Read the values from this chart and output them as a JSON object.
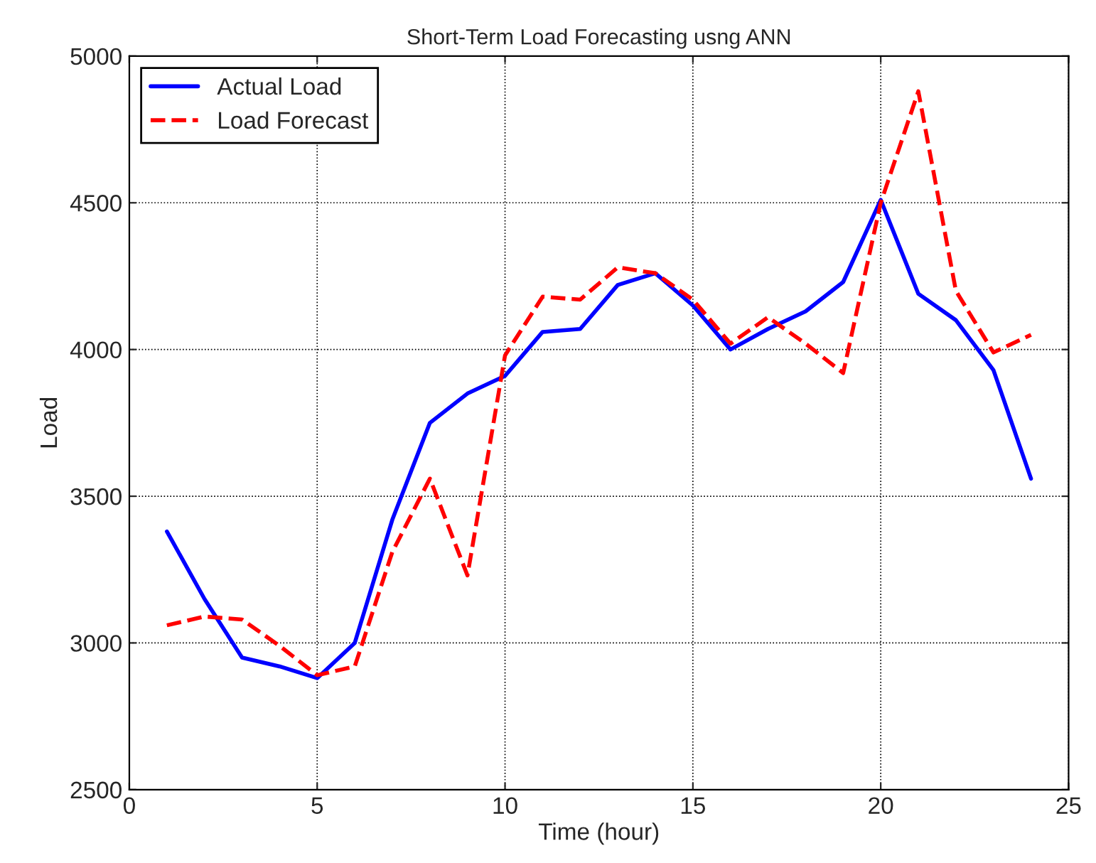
{
  "chart_data": {
    "type": "line",
    "title": "Short-Term Load Forecasting usng ANN",
    "xlabel": "Time (hour)",
    "ylabel": "Load",
    "x": [
      1,
      2,
      3,
      4,
      5,
      6,
      7,
      8,
      9,
      10,
      11,
      12,
      13,
      14,
      15,
      16,
      17,
      18,
      19,
      20,
      21,
      22,
      23,
      24
    ],
    "series": [
      {
        "name": "Actual Load",
        "color": "#0000ff",
        "line_style": "solid",
        "values": [
          3380,
          3150,
          2950,
          2920,
          2880,
          3000,
          3420,
          3750,
          3850,
          3910,
          4060,
          4070,
          4220,
          4260,
          4150,
          4000,
          4070,
          4130,
          4230,
          4510,
          4190,
          4100,
          3930,
          3560
        ]
      },
      {
        "name": "Load Forecast",
        "color": "#ff0000",
        "line_style": "dashed",
        "values": [
          3060,
          3090,
          3080,
          2990,
          2890,
          2920,
          3310,
          3560,
          3230,
          3980,
          4180,
          4170,
          4280,
          4260,
          4170,
          4020,
          4110,
          4020,
          3920,
          4500,
          4880,
          4200,
          3990,
          4050
        ]
      }
    ],
    "xlim": [
      0,
      25
    ],
    "xticks": [
      0,
      5,
      10,
      15,
      20,
      25
    ],
    "ylim": [
      2500,
      5000
    ],
    "yticks": [
      2500,
      3000,
      3500,
      4000,
      4500,
      5000
    ],
    "grid": true,
    "legend": "top left",
    "marker": "none"
  }
}
